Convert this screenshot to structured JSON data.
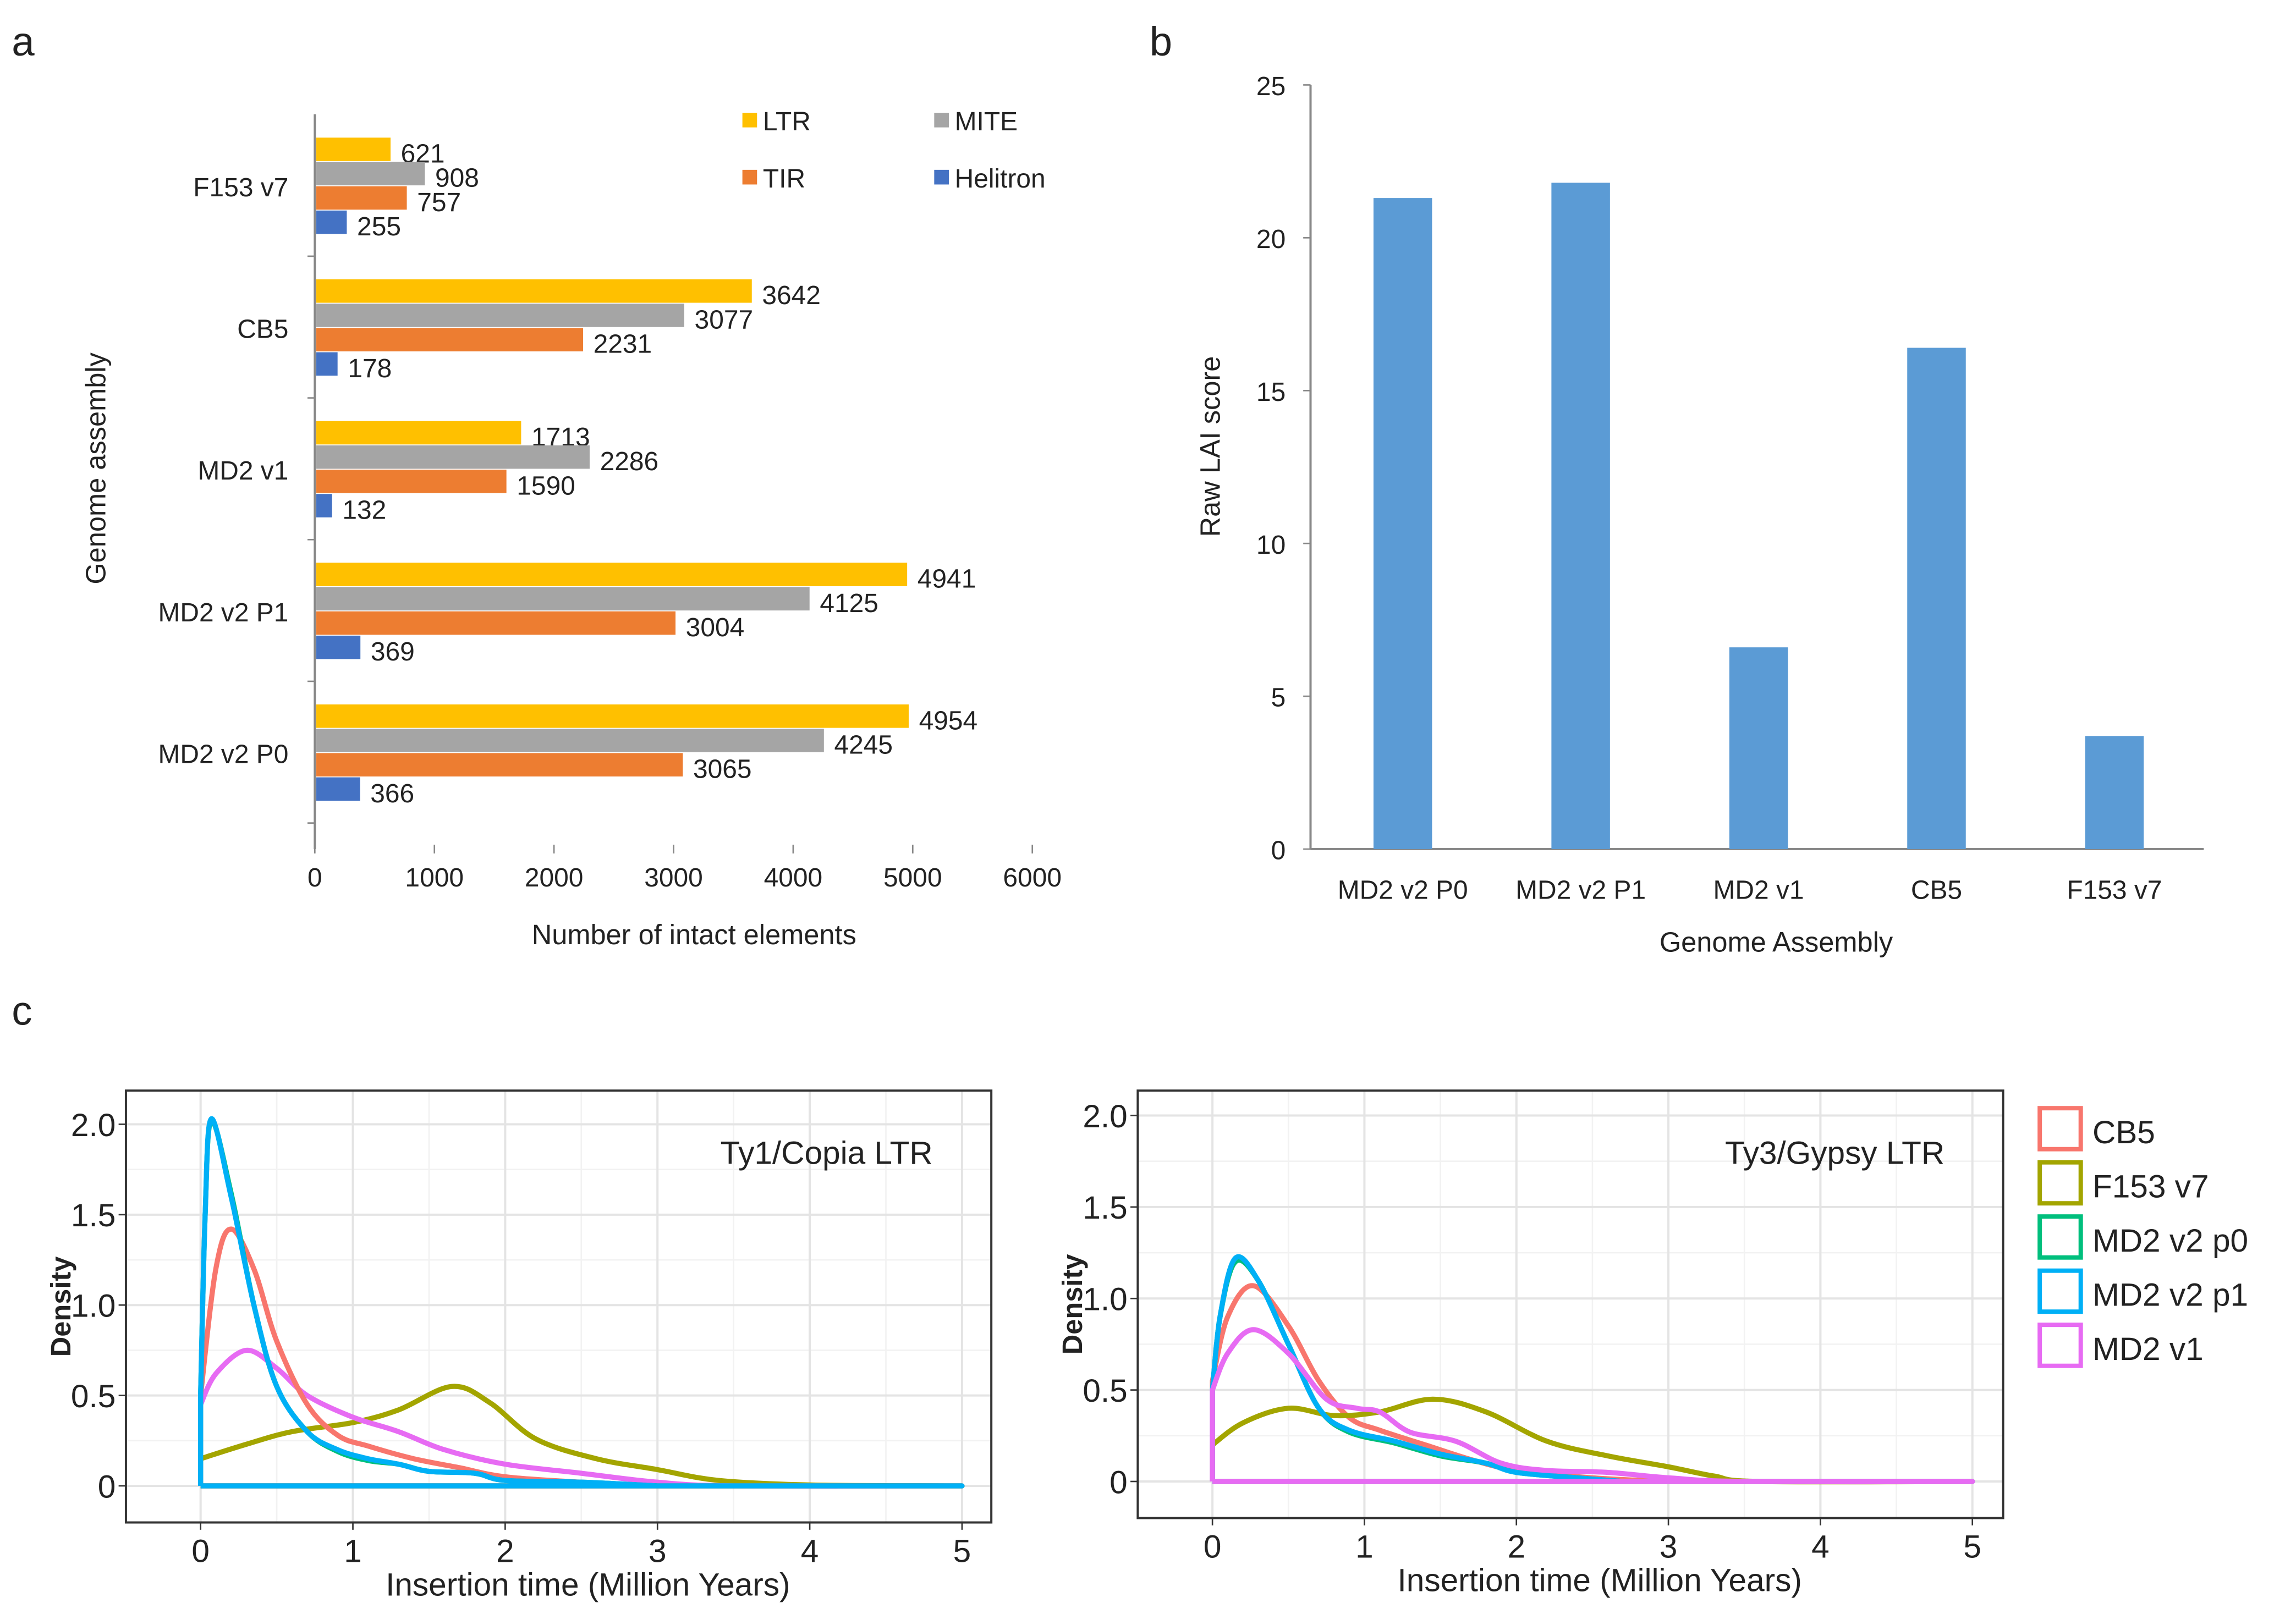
{
  "panel_labels": [
    "a",
    "b",
    "c"
  ],
  "chart_data": [
    {
      "type": "bar",
      "orientation": "horizontal",
      "panel": "a",
      "xlabel": "Number  of intact elements",
      "ylabel": "Genome assembly",
      "xlim": [
        0,
        6000
      ],
      "xticks": [
        "0",
        "1000",
        "2000",
        "3000",
        "4000",
        "5000",
        "6000"
      ],
      "categories": [
        "F153 v7",
        "CB5",
        "MD2 v1",
        "MD2 v2 P1",
        "MD2 v2 P0"
      ],
      "series": [
        {
          "name": "LTR",
          "color": "#FFC000",
          "values": [
            621,
            3642,
            1713,
            4941,
            4954
          ]
        },
        {
          "name": "MITE",
          "color": "#A5A5A5",
          "values": [
            908,
            3077,
            2286,
            4125,
            4245
          ]
        },
        {
          "name": "TIR",
          "color": "#ED7D31",
          "values": [
            757,
            2231,
            1590,
            3004,
            3065
          ]
        },
        {
          "name": "Helitron",
          "color": "#4472C4",
          "values": [
            255,
            178,
            132,
            369,
            366
          ]
        }
      ],
      "legend": "top-right",
      "grid": false
    },
    {
      "type": "bar",
      "panel": "b",
      "xlabel": "Genome Assembly",
      "ylabel": "Raw LAI score",
      "ylim": [
        0,
        25
      ],
      "yticks": [
        "0",
        "5",
        "10",
        "15",
        "20",
        "25"
      ],
      "categories": [
        "MD2 v2 P0",
        "MD2 v2 P1",
        "MD2 v1",
        "CB5",
        "F153 v7"
      ],
      "values": [
        21.3,
        21.8,
        6.6,
        16.4,
        3.7
      ],
      "color": "#5B9BD5",
      "grid": false
    },
    {
      "type": "line",
      "panel": "c",
      "title": "Ty1/Copia LTR",
      "xlabel": "Insertion time (Million Years)",
      "ylabel": "Density",
      "xlim": [
        0,
        5
      ],
      "ylim": [
        0,
        2.0
      ],
      "xticks": [
        "0",
        "1",
        "2",
        "3",
        "4",
        "5"
      ],
      "yticks": [
        "0",
        "0.5",
        "1.0",
        "1.5",
        "2.0"
      ],
      "grid": true,
      "series": [
        {
          "name": "F153 v7",
          "color": "#A3A500",
          "points": [
            [
              0,
              0.15
            ],
            [
              0.3,
              0.23
            ],
            [
              0.6,
              0.3
            ],
            [
              1.0,
              0.35
            ],
            [
              1.3,
              0.42
            ],
            [
              1.65,
              0.55
            ],
            [
              1.9,
              0.46
            ],
            [
              2.2,
              0.26
            ],
            [
              2.6,
              0.15
            ],
            [
              3.0,
              0.09
            ],
            [
              3.4,
              0.03
            ],
            [
              4.0,
              0.005
            ],
            [
              4.9,
              0
            ]
          ]
        },
        {
          "name": "MD2 v1",
          "color": "#E76BF3",
          "points": [
            [
              0,
              0.45
            ],
            [
              0.1,
              0.62
            ],
            [
              0.3,
              0.75
            ],
            [
              0.5,
              0.65
            ],
            [
              0.7,
              0.5
            ],
            [
              1.0,
              0.38
            ],
            [
              1.3,
              0.3
            ],
            [
              1.6,
              0.2
            ],
            [
              2.0,
              0.12
            ],
            [
              2.5,
              0.07
            ],
            [
              3.0,
              0.02
            ],
            [
              3.5,
              0
            ],
            [
              4.9,
              0
            ]
          ]
        },
        {
          "name": "CB5",
          "color": "#F8766D",
          "points": [
            [
              0,
              0.5
            ],
            [
              0.1,
              1.2
            ],
            [
              0.2,
              1.42
            ],
            [
              0.35,
              1.2
            ],
            [
              0.5,
              0.8
            ],
            [
              0.7,
              0.45
            ],
            [
              0.9,
              0.28
            ],
            [
              1.1,
              0.22
            ],
            [
              1.4,
              0.15
            ],
            [
              1.7,
              0.1
            ],
            [
              2.0,
              0.05
            ],
            [
              2.5,
              0.02
            ],
            [
              3.0,
              0
            ]
          ]
        },
        {
          "name": "MD2 v2 p0",
          "color": "#00BF7D",
          "points": [
            [
              0,
              0.5
            ],
            [
              0.03,
              1.5
            ],
            [
              0.07,
              2.02
            ],
            [
              0.2,
              1.62
            ],
            [
              0.35,
              1.0
            ],
            [
              0.5,
              0.55
            ],
            [
              0.7,
              0.3
            ],
            [
              0.9,
              0.19
            ],
            [
              1.1,
              0.14
            ],
            [
              1.3,
              0.12
            ],
            [
              1.5,
              0.08
            ],
            [
              1.8,
              0.07
            ],
            [
              2.0,
              0.03
            ],
            [
              2.5,
              0.02
            ],
            [
              3.0,
              0
            ]
          ]
        },
        {
          "name": "MD2 v2 p1",
          "color": "#00B0F6",
          "points": [
            [
              0,
              0.5
            ],
            [
              0.03,
              1.5
            ],
            [
              0.07,
              2.03
            ],
            [
              0.2,
              1.6
            ],
            [
              0.35,
              1.0
            ],
            [
              0.5,
              0.55
            ],
            [
              0.7,
              0.3
            ],
            [
              0.9,
              0.2
            ],
            [
              1.1,
              0.15
            ],
            [
              1.3,
              0.12
            ],
            [
              1.5,
              0.08
            ],
            [
              1.8,
              0.07
            ],
            [
              2.0,
              0.03
            ],
            [
              2.5,
              0.02
            ],
            [
              3.0,
              0
            ]
          ]
        }
      ]
    },
    {
      "type": "line",
      "panel": "c",
      "title": "Ty3/Gypsy LTR",
      "xlabel": "Insertion time (Million Years)",
      "ylabel": "Density",
      "xlim": [
        0,
        5
      ],
      "ylim": [
        0,
        2.0
      ],
      "xticks": [
        "0",
        "1",
        "2",
        "3",
        "4",
        "5"
      ],
      "yticks": [
        "0",
        "0.5",
        "1.0",
        "1.5",
        "2.0"
      ],
      "grid": true,
      "legend": "right",
      "series": [
        {
          "name": "CB5",
          "color": "#F8766D",
          "points": [
            [
              0,
              0.55
            ],
            [
              0.1,
              0.9
            ],
            [
              0.27,
              1.07
            ],
            [
              0.5,
              0.85
            ],
            [
              0.7,
              0.55
            ],
            [
              0.9,
              0.35
            ],
            [
              1.1,
              0.28
            ],
            [
              1.4,
              0.2
            ],
            [
              1.7,
              0.12
            ],
            [
              2.0,
              0.06
            ],
            [
              2.5,
              0.02
            ],
            [
              3.0,
              0
            ]
          ]
        },
        {
          "name": "F153 v7",
          "color": "#A3A500",
          "points": [
            [
              0,
              0.2
            ],
            [
              0.2,
              0.32
            ],
            [
              0.5,
              0.4
            ],
            [
              0.8,
              0.36
            ],
            [
              1.1,
              0.38
            ],
            [
              1.45,
              0.45
            ],
            [
              1.8,
              0.38
            ],
            [
              2.2,
              0.22
            ],
            [
              2.6,
              0.14
            ],
            [
              3.0,
              0.08
            ],
            [
              3.3,
              0.03
            ],
            [
              3.6,
              0
            ],
            [
              5.0,
              0
            ]
          ]
        },
        {
          "name": "MD2 v2 p0",
          "color": "#00BF7D",
          "points": [
            [
              0,
              0.5
            ],
            [
              0.05,
              0.9
            ],
            [
              0.15,
              1.2
            ],
            [
              0.3,
              1.1
            ],
            [
              0.5,
              0.75
            ],
            [
              0.7,
              0.4
            ],
            [
              0.9,
              0.27
            ],
            [
              1.2,
              0.21
            ],
            [
              1.5,
              0.14
            ],
            [
              1.8,
              0.1
            ],
            [
              2.0,
              0.05
            ],
            [
              2.4,
              0.02
            ],
            [
              2.7,
              0
            ]
          ]
        },
        {
          "name": "MD2 v2 p1",
          "color": "#00B0F6",
          "points": [
            [
              0,
              0.5
            ],
            [
              0.05,
              0.9
            ],
            [
              0.15,
              1.22
            ],
            [
              0.3,
              1.1
            ],
            [
              0.5,
              0.75
            ],
            [
              0.7,
              0.4
            ],
            [
              0.9,
              0.28
            ],
            [
              1.2,
              0.22
            ],
            [
              1.5,
              0.15
            ],
            [
              1.8,
              0.1
            ],
            [
              2.0,
              0.05
            ],
            [
              2.4,
              0.02
            ],
            [
              2.7,
              0
            ]
          ]
        },
        {
          "name": "MD2 v1",
          "color": "#E76BF3",
          "points": [
            [
              0,
              0.5
            ],
            [
              0.1,
              0.7
            ],
            [
              0.27,
              0.83
            ],
            [
              0.5,
              0.7
            ],
            [
              0.75,
              0.45
            ],
            [
              0.95,
              0.4
            ],
            [
              1.1,
              0.38
            ],
            [
              1.3,
              0.27
            ],
            [
              1.6,
              0.22
            ],
            [
              1.9,
              0.1
            ],
            [
              2.2,
              0.06
            ],
            [
              2.6,
              0.05
            ],
            [
              3.0,
              0.02
            ],
            [
              3.5,
              0
            ],
            [
              5.0,
              0
            ]
          ]
        }
      ]
    }
  ]
}
